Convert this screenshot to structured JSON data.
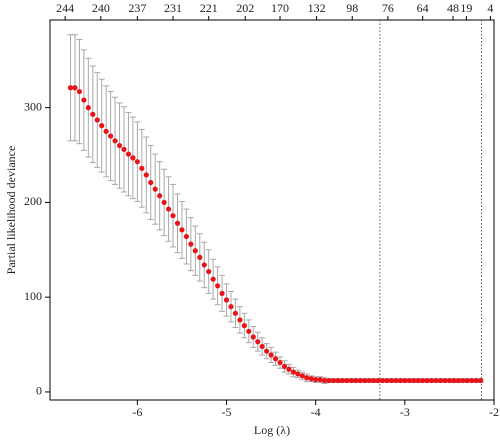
{
  "chart_data": {
    "type": "errorbar-scatter",
    "xlabel": "Log (λ)",
    "ylabel": "Partial likelihood deviance",
    "x": [
      -6.75,
      -6.7,
      -6.65,
      -6.6,
      -6.55,
      -6.5,
      -6.45,
      -6.4,
      -6.35,
      -6.3,
      -6.25,
      -6.2,
      -6.15,
      -6.1,
      -6.05,
      -6.0,
      -5.95,
      -5.9,
      -5.85,
      -5.8,
      -5.75,
      -5.7,
      -5.65,
      -5.6,
      -5.55,
      -5.5,
      -5.45,
      -5.4,
      -5.35,
      -5.3,
      -5.25,
      -5.2,
      -5.15,
      -5.1,
      -5.05,
      -5.0,
      -4.95,
      -4.9,
      -4.85,
      -4.8,
      -4.75,
      -4.7,
      -4.65,
      -4.6,
      -4.55,
      -4.5,
      -4.45,
      -4.4,
      -4.35,
      -4.3,
      -4.25,
      -4.2,
      -4.15,
      -4.1,
      -4.05,
      -4.0,
      -3.95,
      -3.9,
      -3.85,
      -3.8,
      -3.75,
      -3.7,
      -3.65,
      -3.6,
      -3.55,
      -3.5,
      -3.45,
      -3.4,
      -3.35,
      -3.3,
      -3.25,
      -3.2,
      -3.15,
      -3.1,
      -3.05,
      -3.0,
      -2.95,
      -2.9,
      -2.85,
      -2.8,
      -2.75,
      -2.7,
      -2.65,
      -2.6,
      -2.55,
      -2.5,
      -2.45,
      -2.4,
      -2.35,
      -2.3,
      -2.25,
      -2.2,
      -2.15
    ],
    "values": [
      321,
      321,
      317,
      308,
      300,
      293,
      287,
      281,
      275,
      270,
      265,
      260,
      256,
      251,
      247,
      243,
      236,
      229,
      221,
      214,
      207,
      200,
      193,
      186,
      178,
      171,
      164,
      156,
      149,
      142,
      134,
      127,
      119,
      112,
      104,
      97,
      90,
      83,
      76,
      70,
      64,
      58,
      53,
      48,
      43,
      39,
      35,
      31,
      27,
      24,
      21,
      19,
      17,
      15,
      14,
      13,
      13,
      12,
      12,
      12,
      12,
      12,
      12,
      12,
      12,
      12,
      12,
      12,
      12,
      12,
      12,
      12,
      12,
      12,
      12,
      12,
      12,
      12,
      12,
      12,
      12,
      12,
      12,
      12,
      12,
      12,
      12,
      12,
      12,
      12,
      12,
      12,
      12
    ],
    "errors": [
      56,
      56,
      55,
      53,
      52,
      51,
      50,
      49,
      48,
      47,
      46,
      45,
      45,
      44,
      43,
      42,
      41,
      40,
      39,
      37,
      36,
      35,
      34,
      33,
      31,
      30,
      29,
      28,
      26,
      25,
      24,
      23,
      21,
      20,
      19,
      17,
      16,
      15,
      14,
      13,
      12,
      11,
      10,
      9,
      8,
      8,
      7,
      6,
      6,
      5,
      5,
      4,
      4,
      4,
      3,
      3,
      3,
      3,
      2,
      2,
      2,
      2,
      2,
      2,
      2,
      2,
      2,
      2,
      2,
      2,
      2,
      2,
      2,
      2,
      2,
      2,
      2,
      2,
      2,
      2,
      2,
      2,
      2,
      2,
      2,
      2,
      2,
      2,
      2,
      2,
      2,
      2,
      2
    ],
    "color": "#e8141a",
    "error_color": "#a8a8a8",
    "xlim": [
      -6.98,
      -2.0
    ],
    "ylim": [
      -8.5,
      392.5
    ],
    "xticks": [
      -6,
      -5,
      -4,
      -3,
      -2
    ],
    "yticks": [
      0,
      100,
      200,
      300
    ],
    "x2ticks": [
      {
        "value": -6.81,
        "label": "244"
      },
      {
        "value": -6.41,
        "label": "240"
      },
      {
        "value": -6.0,
        "label": "237"
      },
      {
        "value": -5.6,
        "label": "231"
      },
      {
        "value": -5.2,
        "label": "221"
      },
      {
        "value": -4.79,
        "label": "202"
      },
      {
        "value": -4.4,
        "label": "170"
      },
      {
        "value": -3.99,
        "label": "132"
      },
      {
        "value": -3.59,
        "label": "98"
      },
      {
        "value": -3.19,
        "label": "76"
      },
      {
        "value": -2.8,
        "label": "64"
      },
      {
        "value": -2.46,
        "label": "48"
      },
      {
        "value": -2.31,
        "label": "19"
      },
      {
        "value": -2.04,
        "label": "4"
      }
    ],
    "reference_lines_x": [
      -3.28,
      -2.14
    ]
  }
}
